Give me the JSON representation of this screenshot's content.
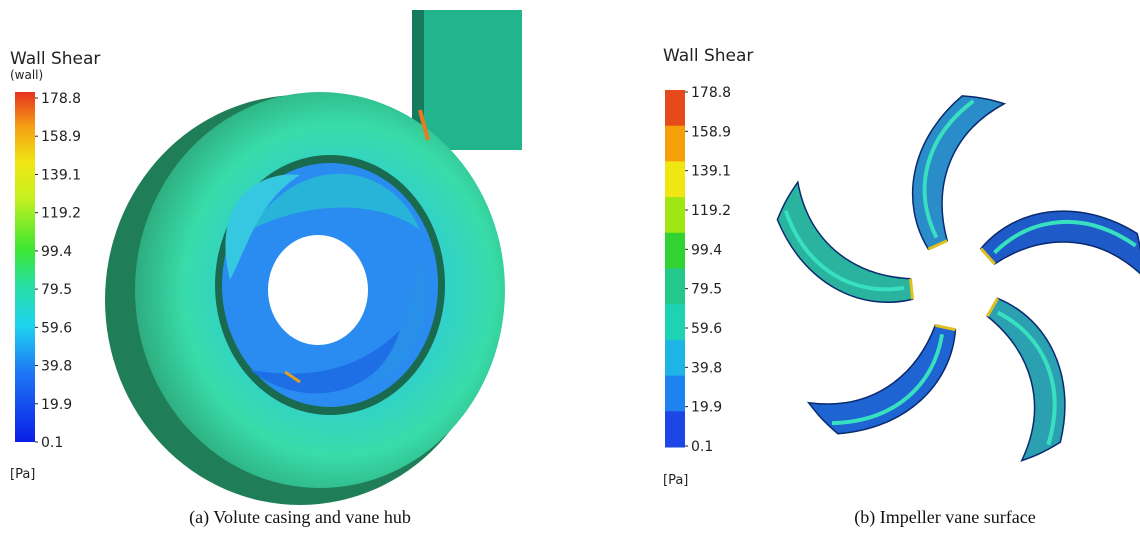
{
  "panels": [
    {
      "legend": {
        "title": "Wall Shear",
        "subtitle": "(wall)",
        "ticks": [
          "178.8",
          "158.9",
          "139.1",
          "119.2",
          "99.4",
          "79.5",
          "59.6",
          "39.8",
          "19.9",
          "0.1"
        ],
        "unit": "[Pa]"
      },
      "caption": "(a) Volute casing  and  vane hub"
    },
    {
      "legend": {
        "title": "Wall Shear",
        "ticks": [
          "178.8",
          "158.9",
          "139.1",
          "119.2",
          "99.4",
          "79.5",
          "59.6",
          "39.8",
          "19.9",
          "0.1"
        ],
        "unit": "[Pa]"
      },
      "caption": "(b) Impeller vane  surface"
    }
  ]
}
